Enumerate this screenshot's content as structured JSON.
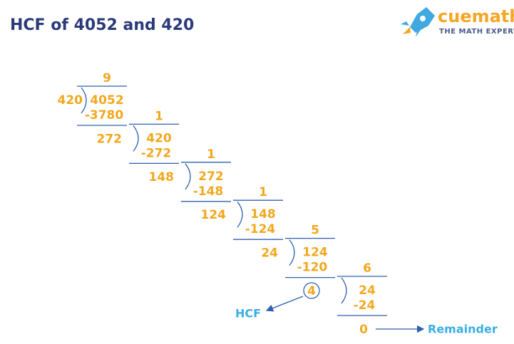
{
  "header": {
    "title": "HCF of 4052 and 420",
    "logo": {
      "name": "cuemath",
      "tagline": "THE MATH EXPERT"
    }
  },
  "division": {
    "steps": [
      {
        "quotient": "9",
        "divisor": "420",
        "dividend": "4052",
        "product": "-3780"
      },
      {
        "quotient": "1",
        "divisor": "272",
        "dividend": "420",
        "product": "-272"
      },
      {
        "quotient": "1",
        "divisor": "148",
        "dividend": "272",
        "product": "-148"
      },
      {
        "quotient": "1",
        "divisor": "124",
        "dividend": "148",
        "product": "-124"
      },
      {
        "quotient": "5",
        "divisor": "24",
        "dividend": "124",
        "product": "-120"
      },
      {
        "quotient": "6",
        "divisor": "4",
        "dividend": "24",
        "product": "-24"
      }
    ],
    "final_remainder": "0"
  },
  "labels": {
    "hcf": "HCF",
    "remainder": "Remainder"
  }
}
